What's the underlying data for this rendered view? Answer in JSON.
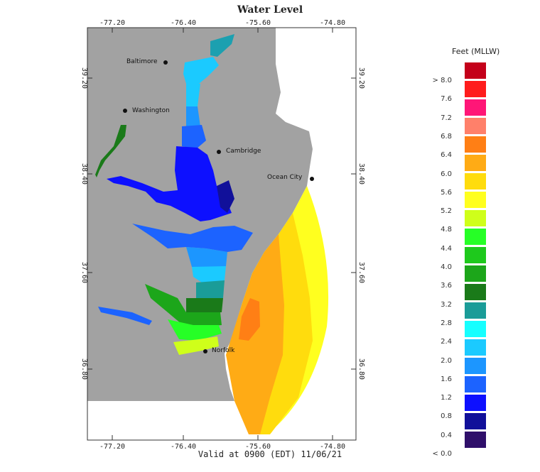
{
  "title": "Water Level",
  "valid_text": "Valid at 0900 (EDT) 11/06/21",
  "axes": {
    "lon_ticks": [
      "-77.20",
      "-76.40",
      "-75.60",
      "-74.80"
    ],
    "lat_ticks": [
      "39.20",
      "38.40",
      "37.60",
      "36.80"
    ]
  },
  "cities": [
    {
      "name": "Baltimore"
    },
    {
      "name": "Washington"
    },
    {
      "name": "Cambridge"
    },
    {
      "name": "Ocean City"
    },
    {
      "name": "Norfolk"
    }
  ],
  "legend": {
    "title": "Feet (MLLW)",
    "labels": [
      "> 8.0",
      "7.6",
      "7.2",
      "6.8",
      "6.4",
      "6.0",
      "5.6",
      "5.2",
      "4.8",
      "4.4",
      "4.0",
      "3.6",
      "3.2",
      "2.8",
      "2.4",
      "2.0",
      "1.6",
      "1.2",
      "0.8",
      "0.4",
      "< 0.0"
    ],
    "colors": [
      "#c4001a",
      "#ff1c1c",
      "#ff1677",
      "#ff806a",
      "#ff7f15",
      "#ffab15",
      "#ffdc0d",
      "#ffff1f",
      "#cfff1a",
      "#26ff26",
      "#1ec91c",
      "#1ca61a",
      "#1a7a19",
      "#1a9c98",
      "#16ffff",
      "#1bcaff",
      "#1c96ff",
      "#1c63ff",
      "#0d10ff",
      "#11109a",
      "#2f0f6a"
    ]
  },
  "colors": {
    "land": "#a2a2a2",
    "water_bg": "#ffffff"
  }
}
